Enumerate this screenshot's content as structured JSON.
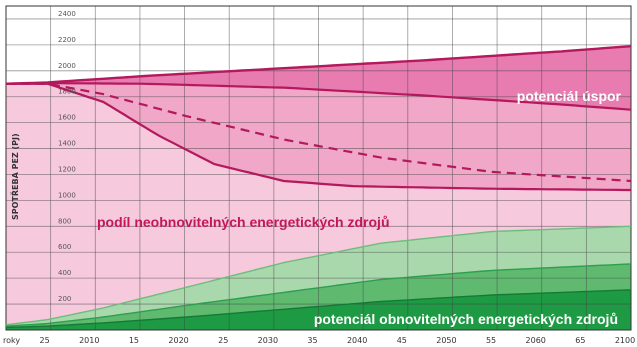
{
  "chart_data": {
    "type": "area",
    "title": "",
    "ylabel": "SPOTŘEBA PEZ (PJ)",
    "xlabel": "",
    "x_axis_label": "roky",
    "xlim": [
      2005,
      2050
    ],
    "x_ticks": [
      "25",
      "2010",
      "15",
      "2020",
      "25",
      "2030",
      "35",
      "2040",
      "45",
      "2050",
      "55",
      "2060",
      "65",
      "2100"
    ],
    "y_ticks_top": [
      "2400",
      "2200",
      "2000"
    ],
    "y_ticks_lower": [
      "1800",
      "1600",
      "1400",
      "1200",
      "1000",
      "800",
      "600",
      "400",
      "200"
    ],
    "grid": true,
    "colors": {
      "savings": "#e87cb0",
      "savings_dark": "#d4498f",
      "nonrenewable": "#f7c9dd",
      "nonrenewable_mid": "#f1a7c8",
      "line": "#b3195c",
      "renewable_light": "#a9d8ad",
      "renewable_mid": "#5fba6f",
      "renewable_dark": "#1d9a43",
      "grid": "#444444"
    },
    "series": [
      {
        "name": "",
        "role": "upper bound of savings potential",
        "x": [
          2005,
          2008,
          2015,
          2025,
          2035,
          2045,
          2050
        ],
        "y": [
          1900,
          1910,
          1960,
          2020,
          2080,
          2150,
          2190
        ]
      },
      {
        "name": "",
        "role": "upper consumption line",
        "x": [
          2005,
          2008,
          2015,
          2025,
          2035,
          2045,
          2050
        ],
        "y": [
          1900,
          1905,
          1900,
          1870,
          1810,
          1740,
          1700
        ]
      },
      {
        "name": "",
        "role": "dashed consumption line",
        "x": [
          2005,
          2008,
          2012,
          2018,
          2025,
          2032,
          2040,
          2050
        ],
        "y": [
          1900,
          1900,
          1820,
          1650,
          1470,
          1330,
          1220,
          1150
        ]
      },
      {
        "name": "",
        "role": "lower consumption line",
        "x": [
          2005,
          2008,
          2012,
          2016,
          2020,
          2025,
          2030,
          2040,
          2050
        ],
        "y": [
          1900,
          1900,
          1760,
          1500,
          1280,
          1150,
          1110,
          1090,
          1080
        ]
      },
      {
        "name": "",
        "role": "upper bound of renewables",
        "x": [
          2005,
          2008,
          2012,
          2018,
          2025,
          2032,
          2040,
          2050
        ],
        "y": [
          40,
          80,
          170,
          330,
          520,
          670,
          760,
          800
        ]
      },
      {
        "name": "",
        "role": "middle renewables line",
        "x": [
          2005,
          2008,
          2012,
          2018,
          2025,
          2032,
          2040,
          2050
        ],
        "y": [
          30,
          50,
          100,
          190,
          290,
          390,
          460,
          510
        ]
      },
      {
        "name": "",
        "role": "lower renewables line",
        "x": [
          2005,
          2008,
          2012,
          2018,
          2025,
          2032,
          2040,
          2050
        ],
        "y": [
          20,
          30,
          55,
          100,
          160,
          220,
          270,
          310
        ]
      }
    ],
    "annotations": [
      "potenciál úspor",
      "podíl neobnovitelných energetických zdrojů",
      "potenciál obnovitelných energetických zdrojů"
    ]
  }
}
